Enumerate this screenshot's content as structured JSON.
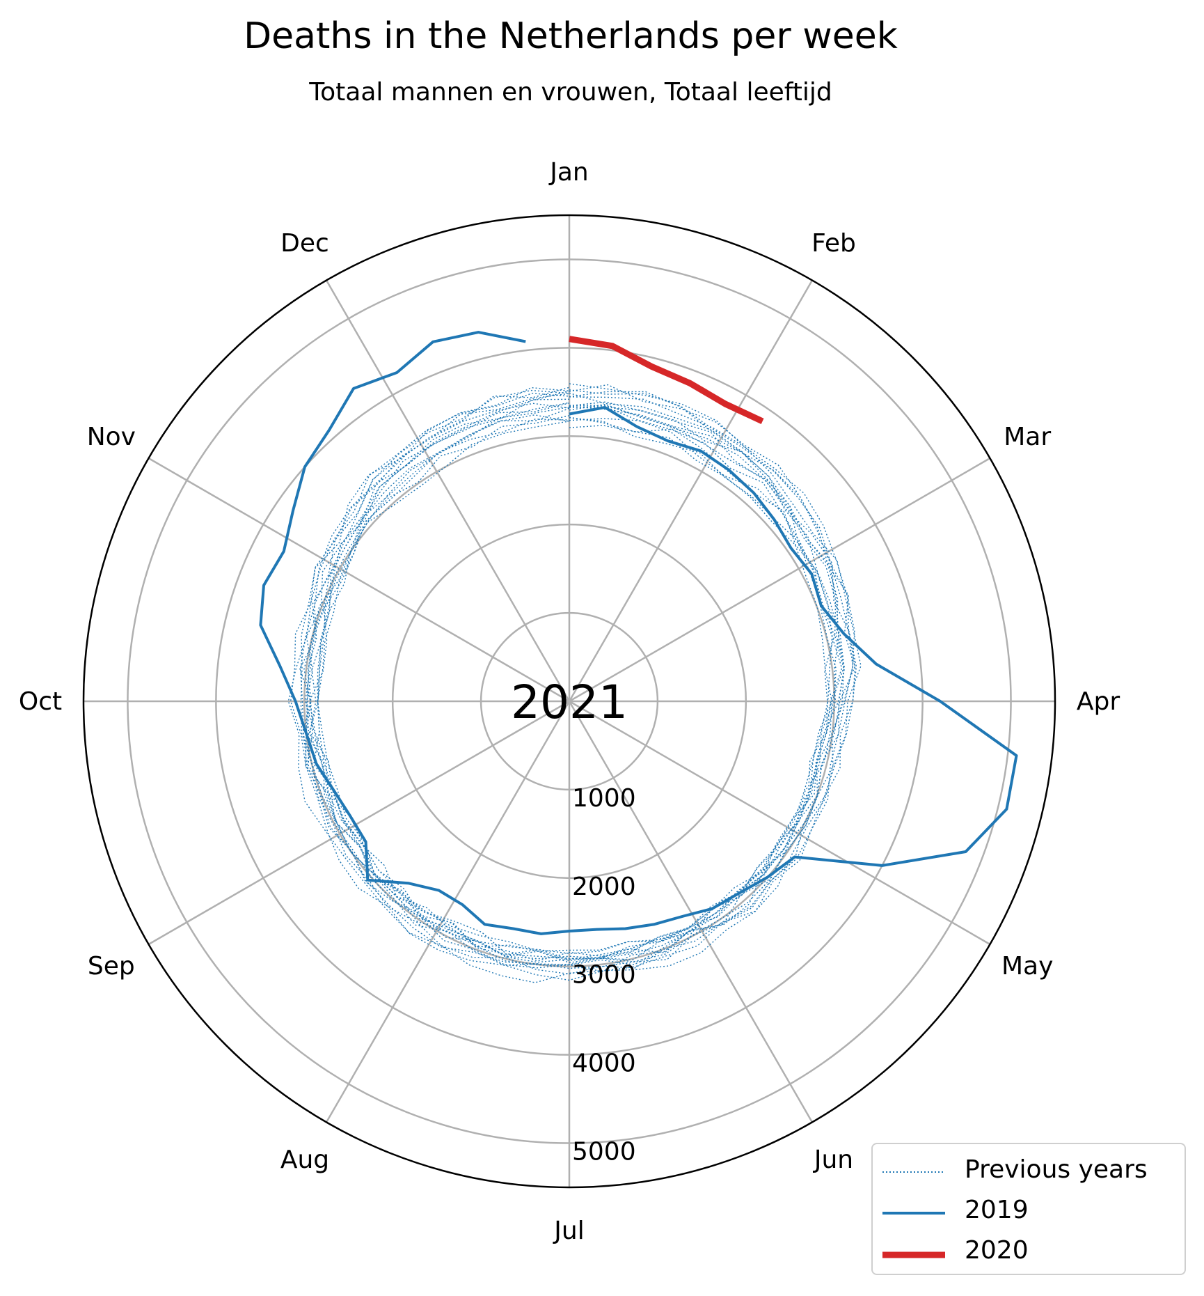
{
  "title": "Deaths in the Netherlands per week",
  "subtitle": "Totaal mannen en vrouwen, Totaal leeftijd",
  "colors": {
    "previous": "#1f77b4",
    "y2019": "#1f77b4",
    "y2020": "#d62728",
    "grid": "#b0b0b0",
    "frame": "#000000"
  },
  "chart_data": {
    "type": "line",
    "projection": "polar",
    "direction": "clockwise",
    "zero_location": "top",
    "center_label": "2021",
    "radial_range": [
      0,
      5500
    ],
    "radial_ticks": [
      1000,
      2000,
      3000,
      4000,
      5000
    ],
    "radial_tick_labels": [
      "1000",
      "2000",
      "3000",
      "4000",
      "5000"
    ],
    "month_labels": [
      "Jan",
      "Feb",
      "Mar",
      "Apr",
      "May",
      "Jun",
      "Jul",
      "Aug",
      "Sep",
      "Oct",
      "Nov",
      "Dec"
    ],
    "grid": true,
    "legend_location": "lower right",
    "legend": [
      {
        "label": "Previous years",
        "style": "dotted",
        "color": "#1f77b4"
      },
      {
        "label": "2019",
        "style": "solid",
        "color": "#1f77b4"
      },
      {
        "label": "2020",
        "style": "solid-thick",
        "color": "#d62728"
      }
    ],
    "series": [
      {
        "name": "2019",
        "week": [
          1,
          2,
          3,
          4,
          5,
          6,
          7,
          8,
          9,
          10,
          11,
          12,
          13,
          14,
          15,
          16,
          17,
          18,
          19,
          20,
          21,
          22,
          23,
          24,
          25,
          26,
          27,
          28,
          29,
          30,
          31,
          32,
          33,
          34,
          35,
          36,
          37,
          38,
          39,
          40,
          41,
          42,
          43,
          44,
          45,
          46,
          47,
          48,
          49,
          50,
          51,
          52
        ],
        "values": [
          3250,
          3350,
          3200,
          3150,
          3200,
          3180,
          3150,
          3100,
          3050,
          3100,
          3050,
          3200,
          3500,
          4200,
          5100,
          5100,
          4800,
          4000,
          3100,
          3000,
          2900,
          2850,
          2750,
          2700,
          2650,
          2600,
          2600,
          2650,
          2650,
          2700,
          2600,
          2600,
          2750,
          3050,
          2800,
          2800,
          2850,
          2950,
          3000,
          3100,
          3300,
          3600,
          3700,
          3650,
          3800,
          4000,
          4100,
          4300,
          4200,
          4350,
          4300,
          4100
        ]
      },
      {
        "name": "2020",
        "week": [
          1,
          2,
          3,
          4,
          5,
          6
        ],
        "values": [
          4100,
          4050,
          3900,
          3850,
          3800,
          3850
        ]
      }
    ],
    "previous_years_note": "dotted series: roughly 2800-3400 deaths per week across all weeks, one line per earlier year"
  }
}
